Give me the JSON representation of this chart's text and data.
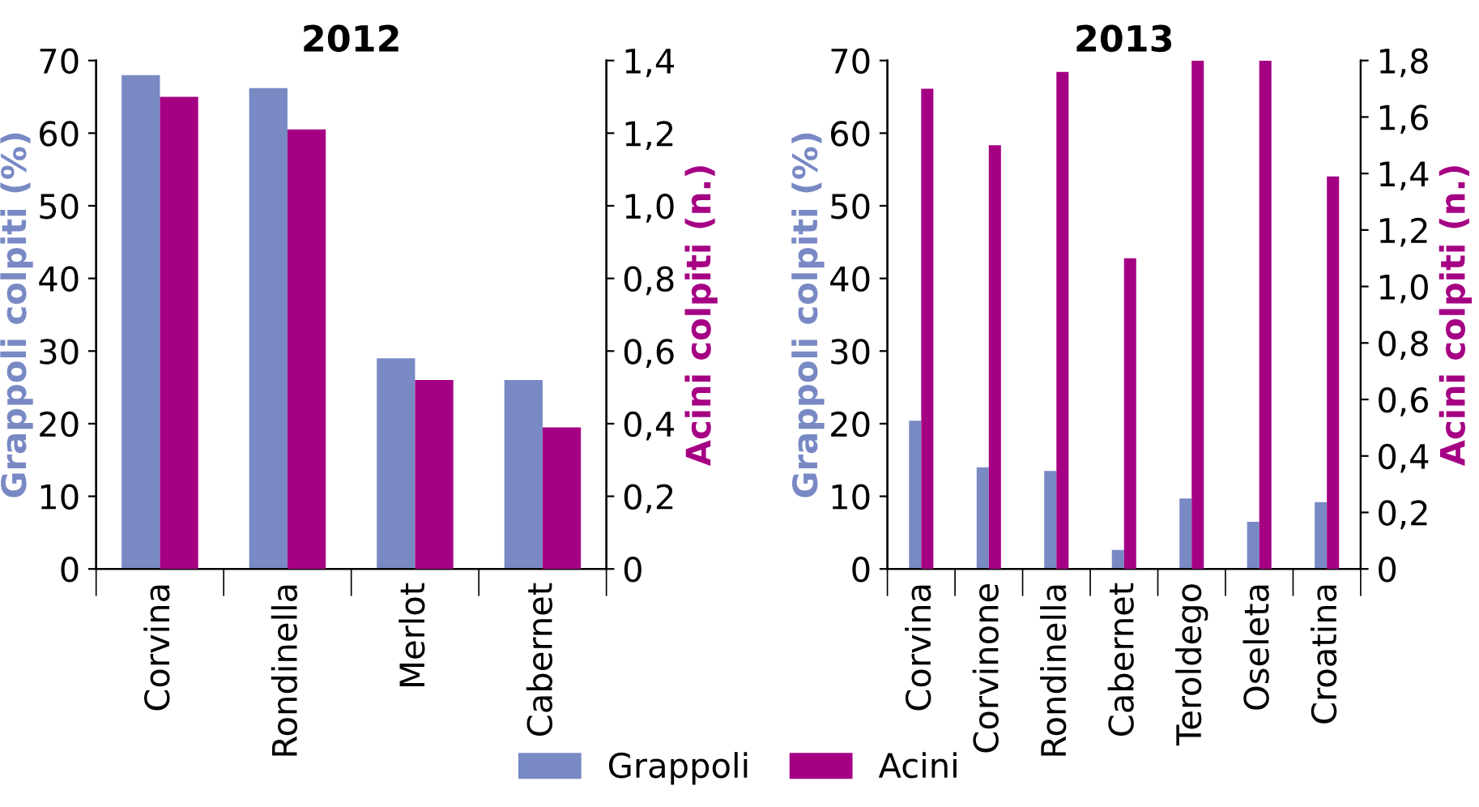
{
  "chart_data": [
    {
      "type": "bar",
      "title": "2012",
      "categories": [
        "Corvina",
        "Rondinella",
        "Merlot",
        "Cabernet"
      ],
      "ylabel": "Grappoli colpiti (%)",
      "y2label": "Acini colpiti (n.)",
      "ylim": [
        0,
        70
      ],
      "yticks": [
        0,
        10,
        20,
        30,
        40,
        50,
        60,
        70
      ],
      "y2lim": [
        0,
        1.4
      ],
      "y2ticks": [
        0,
        {
          "value": 0.2,
          "label": "0,2"
        },
        {
          "value": 0.4,
          "label": "0,4"
        },
        {
          "value": 0.6,
          "label": "0,6"
        },
        {
          "value": 0.8,
          "label": "0,8"
        },
        {
          "value": 1.0,
          "label": "1,0"
        },
        {
          "value": 1.2,
          "label": "1,2"
        },
        {
          "value": 1.4,
          "label": "1,4"
        }
      ],
      "grid": false,
      "legend": "bottom",
      "series": [
        {
          "name": "Grappoli",
          "color": "#7889c4",
          "values": [
            68.0,
            66.2,
            29.0,
            26.0
          ]
        },
        {
          "name": "Acini",
          "color": "#a50083",
          "axis": "y2",
          "values": [
            1.3,
            1.21,
            0.52,
            0.39
          ]
        }
      ]
    },
    {
      "type": "bar",
      "title": "2013",
      "categories": [
        "Corvina",
        "Corvinone",
        "Rondinella",
        "Cabernet",
        "Teroldego",
        "Oseleta",
        "Croatina"
      ],
      "ylabel": "Grappoli colpiti (%)",
      "y2label": "Acini colpiti (n.)",
      "ylim": [
        0,
        70
      ],
      "yticks": [
        0,
        10,
        20,
        30,
        40,
        50,
        60,
        70
      ],
      "y2lim": [
        0,
        1.8
      ],
      "y2ticks": [
        0,
        {
          "value": 0.2,
          "label": "0,2"
        },
        {
          "value": 0.4,
          "label": "0,4"
        },
        {
          "value": 0.6,
          "label": "0,6"
        },
        {
          "value": 0.8,
          "label": "0,8"
        },
        {
          "value": 1.0,
          "label": "1,0"
        },
        {
          "value": 1.2,
          "label": "1,2"
        },
        {
          "value": 1.4,
          "label": "1,4"
        },
        {
          "value": 1.6,
          "label": "1,6"
        },
        {
          "value": 1.8,
          "label": "1,8"
        }
      ],
      "grid": false,
      "series": [
        {
          "name": "Grappoli",
          "color": "#7889c4",
          "values": [
            20.4,
            14.0,
            13.5,
            2.6,
            9.7,
            6.5,
            9.2
          ]
        },
        {
          "name": "Acini",
          "color": "#a50083",
          "axis": "y2",
          "values": [
            1.7,
            1.5,
            1.76,
            1.1,
            1.8,
            1.8,
            1.39
          ]
        }
      ]
    }
  ]
}
